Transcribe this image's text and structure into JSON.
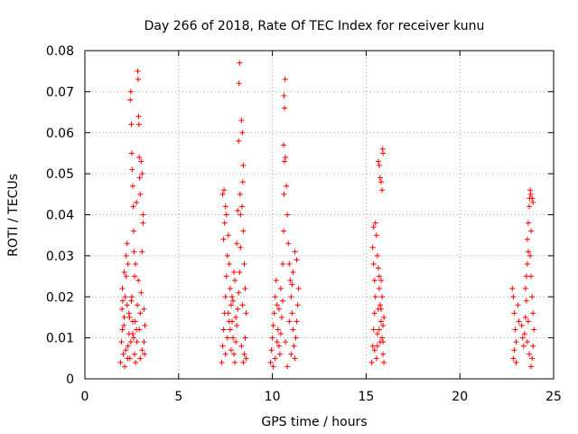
{
  "chart_data": {
    "type": "scatter",
    "title": "Day 266 of 2018, Rate Of TEC Index for receiver kunu",
    "xlabel": "GPS time / hours",
    "ylabel": "ROTI / TECUs",
    "xlim": [
      0,
      25
    ],
    "ylim": [
      0,
      0.08
    ],
    "xticks": [
      0,
      5,
      10,
      15,
      20,
      25
    ],
    "xtick_labels": [
      "0",
      "5",
      "10",
      "15",
      "20",
      "25"
    ],
    "yticks": [
      0,
      0.01,
      0.02,
      0.03,
      0.04,
      0.05,
      0.06,
      0.07,
      0.08
    ],
    "ytick_labels": [
      "0",
      "0.01",
      "0.02",
      "0.03",
      "0.04",
      "0.05",
      "0.06",
      "0.07",
      "0.08"
    ],
    "grid": true,
    "marker": "+",
    "color": "#ff0000",
    "series": [
      {
        "points": [
          [
            1.9,
            0.004
          ],
          [
            1.95,
            0.009
          ],
          [
            2.0,
            0.012
          ],
          [
            2.05,
            0.006
          ],
          [
            2.1,
            0.015
          ],
          [
            2.15,
            0.02
          ],
          [
            2.2,
            0.025
          ],
          [
            2.25,
            0.018
          ],
          [
            2.3,
            0.028
          ],
          [
            2.35,
            0.011
          ],
          [
            2.0,
            0.022
          ],
          [
            2.1,
            0.026
          ],
          [
            2.2,
            0.03
          ],
          [
            2.25,
            0.033
          ],
          [
            2.3,
            0.008
          ],
          [
            2.35,
            0.016
          ],
          [
            2.4,
            0.005
          ],
          [
            1.98,
            0.017
          ],
          [
            2.08,
            0.013
          ],
          [
            2.18,
            0.007
          ],
          [
            2.42,
            0.068
          ],
          [
            2.45,
            0.07
          ],
          [
            2.48,
            0.062
          ],
          [
            2.5,
            0.055
          ],
          [
            2.52,
            0.051
          ],
          [
            2.55,
            0.047
          ],
          [
            2.58,
            0.042
          ],
          [
            2.6,
            0.036
          ],
          [
            2.62,
            0.031
          ],
          [
            2.65,
            0.025
          ],
          [
            2.5,
            0.02
          ],
          [
            2.55,
            0.014
          ],
          [
            2.6,
            0.01
          ],
          [
            2.65,
            0.006
          ],
          [
            2.7,
            0.004
          ],
          [
            2.75,
            0.012
          ],
          [
            2.8,
            0.018
          ],
          [
            2.85,
            0.024
          ],
          [
            2.7,
            0.028
          ],
          [
            2.75,
            0.043
          ],
          [
            2.82,
            0.075
          ],
          [
            2.84,
            0.073
          ],
          [
            2.86,
            0.064
          ],
          [
            2.88,
            0.062
          ],
          [
            2.9,
            0.054
          ],
          [
            2.92,
            0.049
          ],
          [
            2.95,
            0.045
          ],
          [
            3.0,
            0.053
          ],
          [
            3.05,
            0.05
          ],
          [
            3.1,
            0.04
          ],
          [
            3.1,
            0.038
          ],
          [
            3.05,
            0.031
          ],
          [
            3.0,
            0.021
          ],
          [
            2.95,
            0.016
          ],
          [
            2.9,
            0.012
          ],
          [
            3.15,
            0.009
          ],
          [
            3.2,
            0.013
          ],
          [
            3.15,
            0.017
          ],
          [
            3.05,
            0.007
          ],
          [
            2.95,
            0.005
          ],
          [
            2.45,
            0.009
          ],
          [
            2.55,
            0.011
          ],
          [
            2.38,
            0.015
          ],
          [
            2.48,
            0.019
          ],
          [
            2.68,
            0.014
          ],
          [
            2.78,
            0.009
          ],
          [
            3.18,
            0.006
          ],
          [
            2.28,
            0.005
          ],
          [
            2.12,
            0.003
          ],
          [
            2.02,
            0.019
          ],
          [
            7.3,
            0.004
          ],
          [
            7.35,
            0.008
          ],
          [
            7.4,
            0.012
          ],
          [
            7.45,
            0.016
          ],
          [
            7.5,
            0.02
          ],
          [
            7.55,
            0.025
          ],
          [
            7.6,
            0.03
          ],
          [
            7.4,
            0.034
          ],
          [
            7.45,
            0.038
          ],
          [
            7.5,
            0.042
          ],
          [
            7.35,
            0.045
          ],
          [
            7.42,
            0.046
          ],
          [
            7.55,
            0.04
          ],
          [
            7.65,
            0.035
          ],
          [
            7.7,
            0.028
          ],
          [
            7.75,
            0.022
          ],
          [
            7.8,
            0.018
          ],
          [
            7.85,
            0.014
          ],
          [
            7.9,
            0.01
          ],
          [
            7.95,
            0.006
          ],
          [
            8.0,
            0.004
          ],
          [
            8.05,
            0.009
          ],
          [
            8.1,
            0.013
          ],
          [
            8.15,
            0.017
          ],
          [
            8.2,
            0.021
          ],
          [
            8.25,
            0.026
          ],
          [
            8.3,
            0.032
          ],
          [
            8.2,
            0.058
          ],
          [
            8.22,
            0.072
          ],
          [
            8.25,
            0.077
          ],
          [
            8.35,
            0.063
          ],
          [
            8.4,
            0.06
          ],
          [
            8.45,
            0.052
          ],
          [
            8.42,
            0.048
          ],
          [
            8.38,
            0.042
          ],
          [
            8.3,
            0.04
          ],
          [
            8.45,
            0.036
          ],
          [
            8.5,
            0.028
          ],
          [
            8.55,
            0.022
          ],
          [
            8.6,
            0.016
          ],
          [
            8.55,
            0.01
          ],
          [
            8.5,
            0.006
          ],
          [
            8.45,
            0.004
          ],
          [
            7.6,
            0.01
          ],
          [
            7.7,
            0.014
          ],
          [
            7.8,
            0.007
          ],
          [
            7.9,
            0.019
          ],
          [
            8.0,
            0.024
          ],
          [
            8.1,
            0.033
          ],
          [
            8.15,
            0.041
          ],
          [
            7.5,
            0.006
          ],
          [
            7.65,
            0.016
          ],
          [
            7.75,
            0.012
          ],
          [
            7.85,
            0.02
          ],
          [
            7.95,
            0.026
          ],
          [
            8.05,
            0.015
          ],
          [
            8.35,
            0.008
          ],
          [
            8.4,
            0.018
          ],
          [
            8.6,
            0.005
          ],
          [
            8.28,
            0.045
          ],
          [
            9.9,
            0.004
          ],
          [
            9.95,
            0.007
          ],
          [
            10.0,
            0.01
          ],
          [
            10.05,
            0.013
          ],
          [
            10.1,
            0.016
          ],
          [
            10.15,
            0.02
          ],
          [
            10.2,
            0.024
          ],
          [
            10.25,
            0.018
          ],
          [
            10.3,
            0.012
          ],
          [
            10.35,
            0.008
          ],
          [
            10.4,
            0.006
          ],
          [
            10.45,
            0.011
          ],
          [
            10.5,
            0.015
          ],
          [
            10.55,
            0.028
          ],
          [
            10.6,
            0.036
          ],
          [
            10.62,
            0.045
          ],
          [
            10.65,
            0.053
          ],
          [
            10.6,
            0.057
          ],
          [
            10.65,
            0.066
          ],
          [
            10.62,
            0.069
          ],
          [
            10.68,
            0.073
          ],
          [
            10.7,
            0.054
          ],
          [
            10.75,
            0.047
          ],
          [
            10.8,
            0.04
          ],
          [
            10.85,
            0.033
          ],
          [
            10.9,
            0.028
          ],
          [
            10.95,
            0.024
          ],
          [
            11.0,
            0.02
          ],
          [
            11.05,
            0.016
          ],
          [
            11.1,
            0.012
          ],
          [
            11.15,
            0.008
          ],
          [
            11.2,
            0.005
          ],
          [
            11.25,
            0.01
          ],
          [
            11.3,
            0.014
          ],
          [
            11.35,
            0.018
          ],
          [
            11.4,
            0.022
          ],
          [
            11.3,
            0.029
          ],
          [
            11.2,
            0.031
          ],
          [
            11.1,
            0.026
          ],
          [
            11.0,
            0.006
          ],
          [
            10.8,
            0.003
          ],
          [
            10.7,
            0.009
          ],
          [
            10.55,
            0.019
          ],
          [
            10.45,
            0.022
          ],
          [
            10.35,
            0.017
          ],
          [
            10.25,
            0.009
          ],
          [
            10.15,
            0.005
          ],
          [
            10.05,
            0.003
          ],
          [
            10.9,
            0.014
          ],
          [
            11.05,
            0.023
          ],
          [
            15.3,
            0.004
          ],
          [
            15.35,
            0.008
          ],
          [
            15.4,
            0.012
          ],
          [
            15.45,
            0.016
          ],
          [
            15.5,
            0.02
          ],
          [
            15.45,
            0.024
          ],
          [
            15.4,
            0.028
          ],
          [
            15.35,
            0.032
          ],
          [
            15.4,
            0.037
          ],
          [
            15.5,
            0.038
          ],
          [
            15.55,
            0.035
          ],
          [
            15.6,
            0.03
          ],
          [
            15.65,
            0.027
          ],
          [
            15.7,
            0.022
          ],
          [
            15.75,
            0.018
          ],
          [
            15.8,
            0.014
          ],
          [
            15.85,
            0.01
          ],
          [
            15.9,
            0.006
          ],
          [
            15.95,
            0.004
          ],
          [
            15.65,
            0.053
          ],
          [
            15.7,
            0.052
          ],
          [
            15.75,
            0.049
          ],
          [
            15.8,
            0.048
          ],
          [
            15.85,
            0.046
          ],
          [
            15.88,
            0.056
          ],
          [
            15.9,
            0.055
          ],
          [
            15.6,
            0.008
          ],
          [
            15.7,
            0.012
          ],
          [
            15.8,
            0.017
          ],
          [
            15.9,
            0.013
          ],
          [
            15.55,
            0.005
          ],
          [
            15.75,
            0.009
          ],
          [
            15.85,
            0.02
          ],
          [
            15.95,
            0.015
          ],
          [
            15.65,
            0.017
          ],
          [
            15.45,
            0.007
          ],
          [
            15.6,
            0.011
          ],
          [
            15.7,
            0.025
          ],
          [
            15.8,
            0.024
          ],
          [
            15.9,
            0.009
          ],
          [
            22.8,
            0.022
          ],
          [
            22.85,
            0.02
          ],
          [
            22.9,
            0.016
          ],
          [
            22.95,
            0.012
          ],
          [
            23.0,
            0.009
          ],
          [
            22.9,
            0.007
          ],
          [
            22.85,
            0.005
          ],
          [
            23.0,
            0.004
          ],
          [
            23.1,
            0.018
          ],
          [
            23.15,
            0.014
          ],
          [
            23.3,
            0.013
          ],
          [
            23.35,
            0.01
          ],
          [
            23.4,
            0.008
          ],
          [
            23.45,
            0.011
          ],
          [
            23.5,
            0.015
          ],
          [
            23.55,
            0.019
          ],
          [
            23.5,
            0.022
          ],
          [
            23.55,
            0.025
          ],
          [
            23.6,
            0.028
          ],
          [
            23.65,
            0.031
          ],
          [
            23.6,
            0.034
          ],
          [
            23.65,
            0.038
          ],
          [
            23.7,
            0.042
          ],
          [
            23.72,
            0.044
          ],
          [
            23.75,
            0.046
          ],
          [
            23.78,
            0.045
          ],
          [
            23.85,
            0.044
          ],
          [
            23.9,
            0.043
          ],
          [
            23.8,
            0.036
          ],
          [
            23.75,
            0.03
          ],
          [
            23.8,
            0.025
          ],
          [
            23.85,
            0.02
          ],
          [
            23.9,
            0.016
          ],
          [
            23.95,
            0.012
          ],
          [
            23.9,
            0.008
          ],
          [
            23.85,
            0.005
          ],
          [
            23.8,
            0.003
          ],
          [
            23.7,
            0.006
          ],
          [
            23.6,
            0.009
          ],
          [
            23.65,
            0.014
          ]
        ]
      }
    ]
  }
}
